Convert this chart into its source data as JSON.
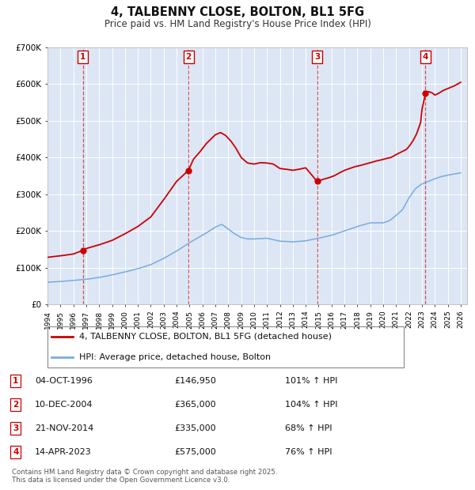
{
  "title": "4, TALBENNY CLOSE, BOLTON, BL1 5FG",
  "subtitle": "Price paid vs. HM Land Registry's House Price Index (HPI)",
  "background_color": "#ffffff",
  "plot_bg_color": "#dce6f5",
  "grid_color": "#ffffff",
  "ylim": [
    0,
    700000
  ],
  "xlim_start": 1994.0,
  "xlim_end": 2026.5,
  "yticks": [
    0,
    100000,
    200000,
    300000,
    400000,
    500000,
    600000,
    700000
  ],
  "ytick_labels": [
    "£0",
    "£100K",
    "£200K",
    "£300K",
    "£400K",
    "£500K",
    "£600K",
    "£700K"
  ],
  "red_line_color": "#cc0000",
  "blue_line_color": "#7aabdc",
  "marker_color": "#cc0000",
  "vline_color": "#cc4444",
  "transaction_markers": [
    {
      "year": 1996.75,
      "value": 146950,
      "label": "1"
    },
    {
      "year": 2004.92,
      "value": 365000,
      "label": "2"
    },
    {
      "year": 2014.88,
      "value": 335000,
      "label": "3"
    },
    {
      "year": 2023.28,
      "value": 575000,
      "label": "4"
    }
  ],
  "legend_entries": [
    "4, TALBENNY CLOSE, BOLTON, BL1 5FG (detached house)",
    "HPI: Average price, detached house, Bolton"
  ],
  "table_rows": [
    [
      "1",
      "04-OCT-1996",
      "£146,950",
      "101% ↑ HPI"
    ],
    [
      "2",
      "10-DEC-2004",
      "£365,000",
      "104% ↑ HPI"
    ],
    [
      "3",
      "21-NOV-2014",
      "£335,000",
      "68% ↑ HPI"
    ],
    [
      "4",
      "14-APR-2023",
      "£575,000",
      "76% ↑ HPI"
    ]
  ],
  "footnote": "Contains HM Land Registry data © Crown copyright and database right 2025.\nThis data is licensed under the Open Government Licence v3.0."
}
